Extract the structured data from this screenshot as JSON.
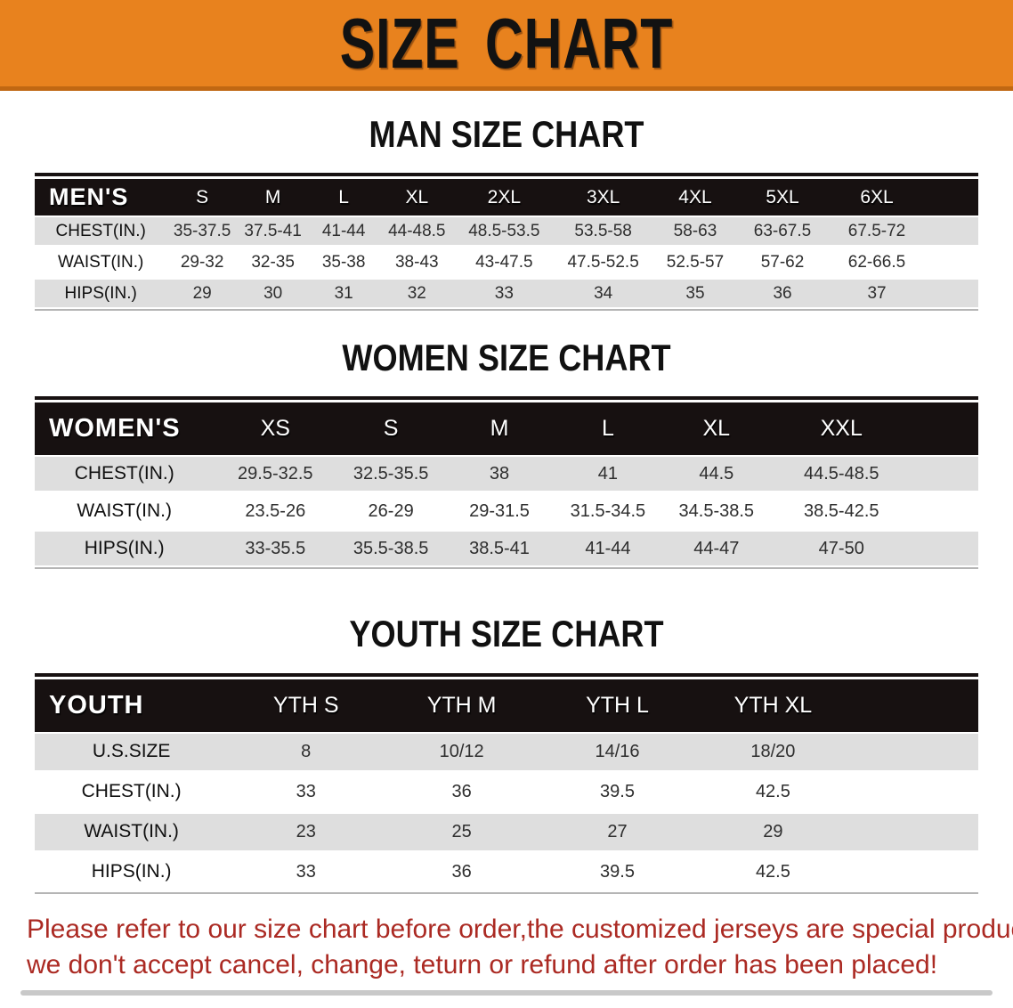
{
  "banner": {
    "title": "SIZE CHART"
  },
  "sections": {
    "men": {
      "heading": "MAN SIZE CHART",
      "table": {
        "title": "MEN'S",
        "columns": [
          "S",
          "M",
          "L",
          "XL",
          "2XL",
          "3XL",
          "4XL",
          "5XL",
          "6XL"
        ],
        "rows": [
          {
            "label": "CHEST(IN.)",
            "values": [
              "35-37.5",
              "37.5-41",
              "41-44",
              "44-48.5",
              "48.5-53.5",
              "53.5-58",
              "58-63",
              "63-67.5",
              "67.5-72"
            ]
          },
          {
            "label": "WAIST(IN.)",
            "values": [
              "29-32",
              "32-35",
              "35-38",
              "38-43",
              "43-47.5",
              "47.5-52.5",
              "52.5-57",
              "57-62",
              "62-66.5"
            ]
          },
          {
            "label": "HIPS(IN.)",
            "values": [
              "29",
              "30",
              "31",
              "32",
              "33",
              "34",
              "35",
              "36",
              "37"
            ]
          }
        ]
      }
    },
    "women": {
      "heading": "WOMEN SIZE CHART",
      "table": {
        "title": "WOMEN'S",
        "columns": [
          "XS",
          "S",
          "M",
          "L",
          "XL",
          "XXL"
        ],
        "rows": [
          {
            "label": "CHEST(IN.)",
            "values": [
              "29.5-32.5",
              "32.5-35.5",
              "38",
              "41",
              "44.5",
              "44.5-48.5"
            ]
          },
          {
            "label": "WAIST(IN.)",
            "values": [
              "23.5-26",
              "26-29",
              "29-31.5",
              "31.5-34.5",
              "34.5-38.5",
              "38.5-42.5"
            ]
          },
          {
            "label": "HIPS(IN.)",
            "values": [
              "33-35.5",
              "35.5-38.5",
              "38.5-41",
              "41-44",
              "44-47",
              "47-50"
            ]
          }
        ]
      }
    },
    "youth": {
      "heading": "YOUTH SIZE CHART",
      "table": {
        "title": "YOUTH",
        "columns": [
          "YTH S",
          "YTH M",
          "YTH L",
          "YTH XL"
        ],
        "rows": [
          {
            "label": "U.S.SIZE",
            "values": [
              "8",
              "10/12",
              "14/16",
              "18/20"
            ]
          },
          {
            "label": "CHEST(IN.)",
            "values": [
              "33",
              "36",
              "39.5",
              "42.5"
            ]
          },
          {
            "label": "WAIST(IN.)",
            "values": [
              "23",
              "25",
              "27",
              "29"
            ]
          },
          {
            "label": "HIPS(IN.)",
            "values": [
              "33",
              "36",
              "39.5",
              "42.5"
            ]
          }
        ]
      }
    }
  },
  "footer": {
    "lines": [
      "Please refer to our size chart before order,the customized jerseys are special products,",
      "we don't accept cancel, change, teturn or refund after order has been placed!"
    ]
  },
  "colors": {
    "banner_bg": "#E8821E",
    "banner_edge": "#C06712",
    "table_header_bg": "#171111",
    "table_header_text": "#FFFFFF",
    "row_alt_bg": "#DEDEDE",
    "row_bg": "#FFFFFF",
    "notice_text": "#AB2A23"
  }
}
